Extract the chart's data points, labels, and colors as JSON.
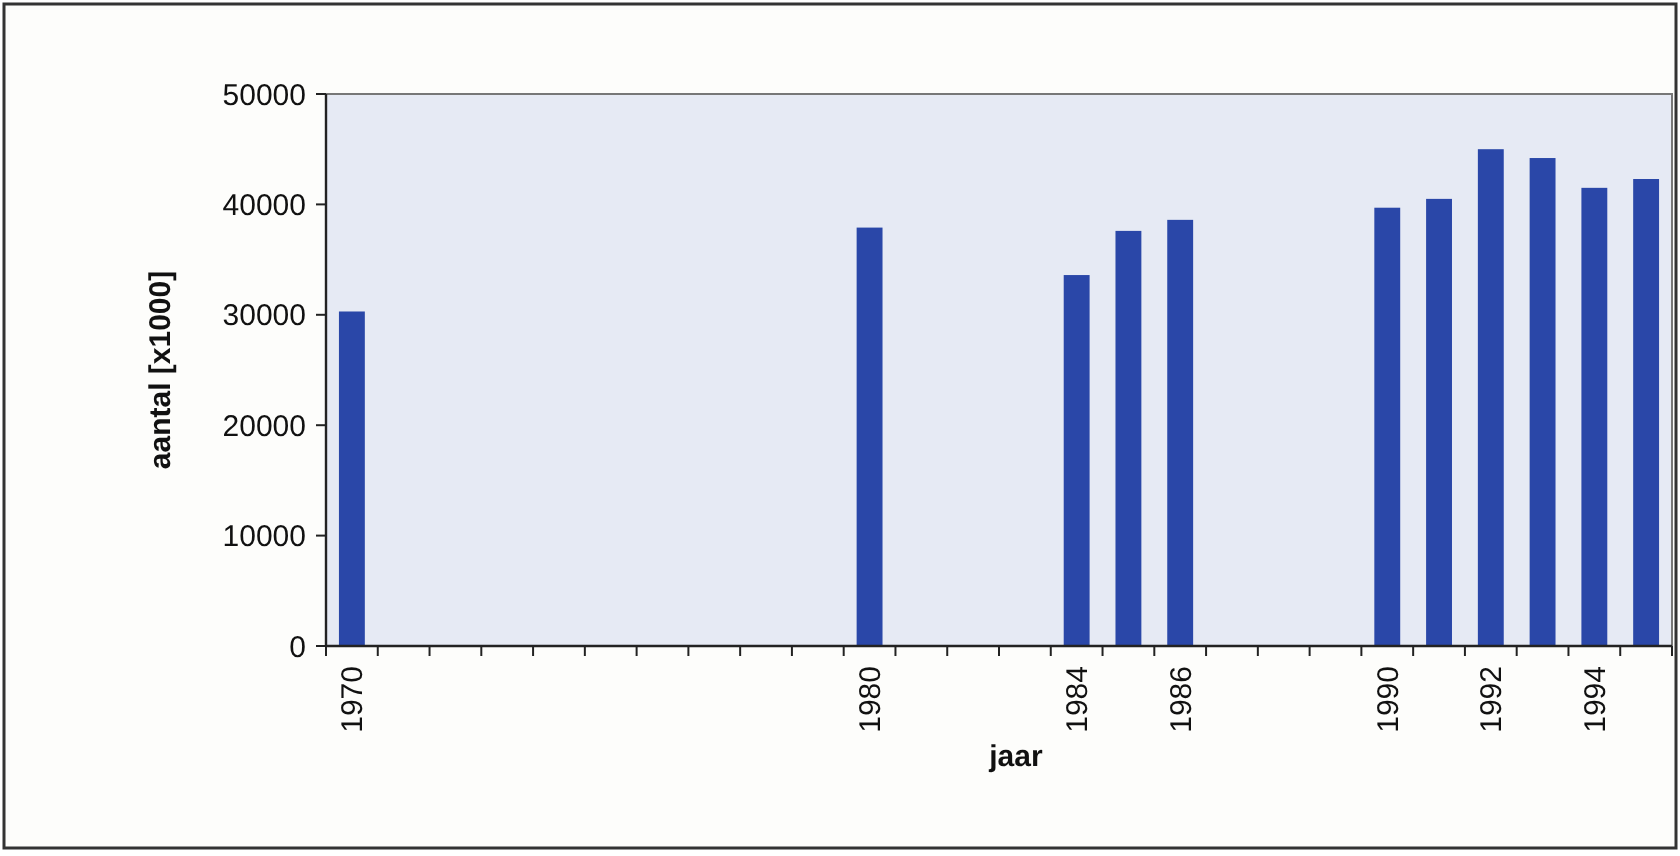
{
  "chart_data": {
    "type": "bar",
    "xlabel": "jaar",
    "ylabel": "aantal [x1000]",
    "categories": [
      "1970",
      null,
      null,
      null,
      null,
      null,
      null,
      null,
      null,
      null,
      "1980",
      null,
      null,
      null,
      "1984",
      null,
      "1986",
      null,
      null,
      null,
      "1990",
      null,
      "1992",
      null,
      "1994",
      null
    ],
    "values": [
      30300,
      null,
      null,
      null,
      null,
      null,
      null,
      null,
      null,
      null,
      37900,
      null,
      null,
      null,
      33600,
      37600,
      38600,
      null,
      null,
      null,
      39700,
      40500,
      45000,
      44200,
      41500,
      42300
    ],
    "color": "#2a47a8",
    "ylim": [
      0,
      50000
    ],
    "yticks": [
      0,
      10000,
      20000,
      30000,
      40000,
      50000
    ],
    "grid": false
  }
}
